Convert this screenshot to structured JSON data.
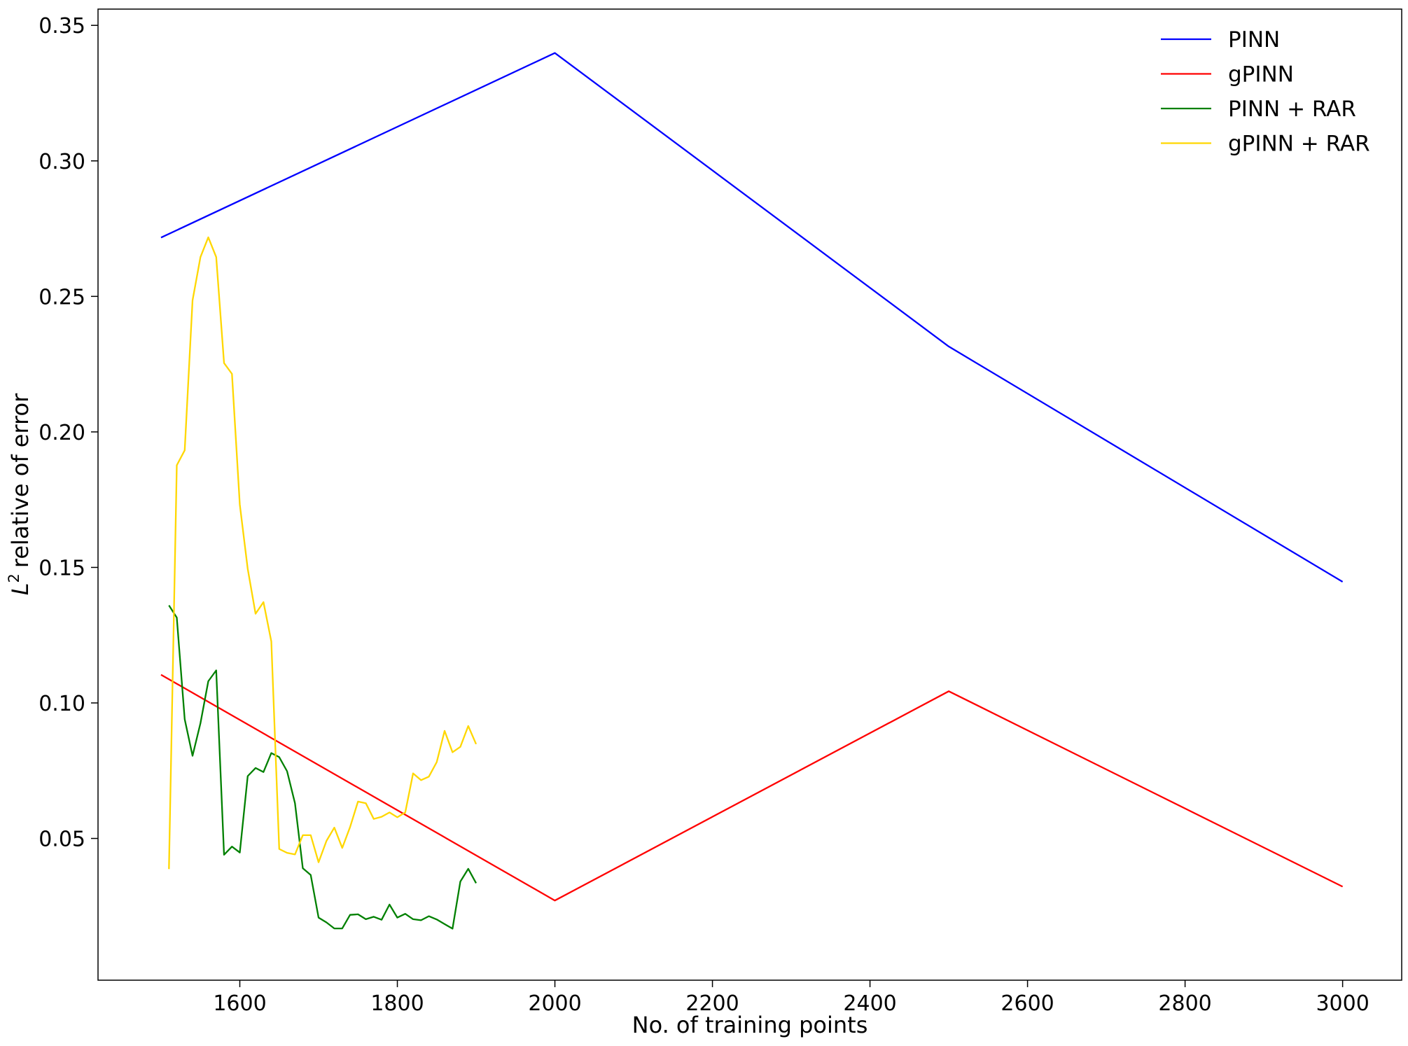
{
  "chart_data": {
    "type": "line",
    "title": "",
    "xlabel": "No. of training points",
    "ylabel": "relative of error",
    "ylabel_math": "L",
    "ylabel_sup": "2",
    "xlim": [
      1420,
      3075
    ],
    "ylim": [
      -0.0023,
      0.356
    ],
    "xticks": [
      1600,
      1800,
      2000,
      2200,
      2400,
      2600,
      2800,
      3000
    ],
    "yticks": [
      0.05,
      0.1,
      0.15,
      0.2,
      0.25,
      0.3,
      0.35
    ],
    "ytick_labels": [
      "0.05",
      "0.10",
      "0.15",
      "0.20",
      "0.25",
      "0.30",
      "0.35"
    ],
    "grid": false,
    "legend_position": "top-right",
    "series": [
      {
        "name": "PINN",
        "color": "#0000ff",
        "x": [
          1500,
          2000,
          2500,
          3000
        ],
        "y": [
          0.2717,
          0.3398,
          0.2315,
          0.1447
        ]
      },
      {
        "name": "gPINN",
        "color": "#ff0000",
        "x": [
          1500,
          2000,
          2500,
          3000
        ],
        "y": [
          0.1104,
          0.0271,
          0.1043,
          0.0322
        ]
      },
      {
        "name": "PINN + RAR",
        "color": "#008000",
        "x": [
          1510,
          1520,
          1530,
          1540,
          1550,
          1560,
          1570,
          1580,
          1590,
          1600,
          1610,
          1620,
          1630,
          1640,
          1650,
          1660,
          1670,
          1680,
          1690,
          1700,
          1710,
          1720,
          1730,
          1740,
          1750,
          1760,
          1770,
          1780,
          1790,
          1800,
          1810,
          1820,
          1830,
          1840,
          1850,
          1860,
          1870,
          1880,
          1890,
          1900
        ],
        "y": [
          0.136,
          0.1315,
          0.094,
          0.0805,
          0.0925,
          0.108,
          0.112,
          0.044,
          0.047,
          0.0448,
          0.073,
          0.076,
          0.0745,
          0.0815,
          0.08,
          0.0748,
          0.063,
          0.039,
          0.0365,
          0.0208,
          0.019,
          0.0168,
          0.0168,
          0.0218,
          0.022,
          0.0202,
          0.0211,
          0.02,
          0.0256,
          0.0208,
          0.0222,
          0.0202,
          0.0198,
          0.0213,
          0.0201,
          0.0184,
          0.0167,
          0.0341,
          0.0388,
          0.0335
        ]
      },
      {
        "name": "gPINN + RAR",
        "color": "#ffd700",
        "x": [
          1510,
          1520,
          1530,
          1540,
          1550,
          1560,
          1570,
          1580,
          1590,
          1600,
          1610,
          1620,
          1630,
          1640,
          1650,
          1660,
          1670,
          1680,
          1690,
          1700,
          1710,
          1720,
          1730,
          1740,
          1750,
          1760,
          1770,
          1780,
          1790,
          1800,
          1810,
          1820,
          1830,
          1840,
          1850,
          1860,
          1870,
          1880,
          1890,
          1900
        ],
        "y": [
          0.0387,
          0.1877,
          0.1932,
          0.2485,
          0.2645,
          0.2718,
          0.2645,
          0.2254,
          0.2214,
          0.1732,
          0.1495,
          0.1329,
          0.1372,
          0.1227,
          0.0461,
          0.0447,
          0.0441,
          0.0512,
          0.0512,
          0.0412,
          0.0491,
          0.054,
          0.0465,
          0.0542,
          0.0636,
          0.063,
          0.0572,
          0.058,
          0.0596,
          0.0578,
          0.0596,
          0.074,
          0.0715,
          0.0728,
          0.0782,
          0.0897,
          0.0818,
          0.0838,
          0.0915,
          0.0848
        ]
      }
    ]
  }
}
